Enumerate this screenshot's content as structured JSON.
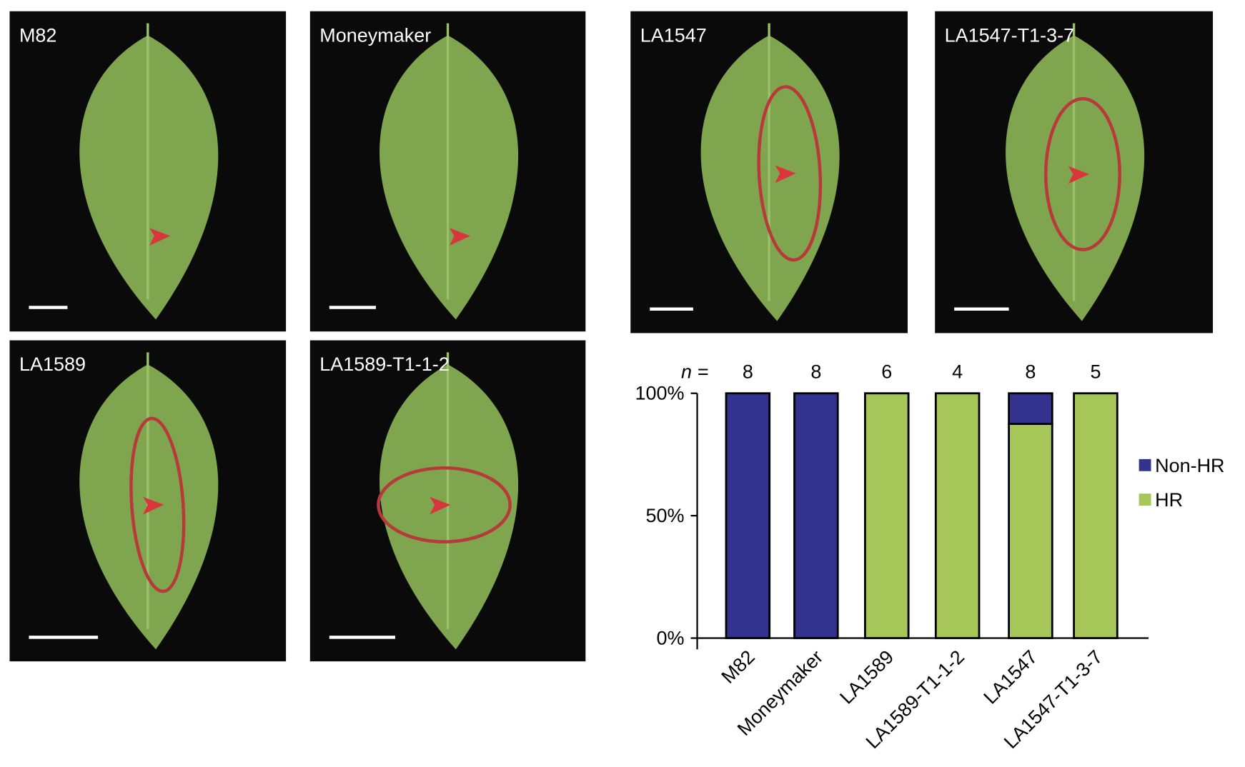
{
  "panels": [
    {
      "label": "M82"
    },
    {
      "label": "Moneymaker"
    },
    {
      "label": "LA1547"
    },
    {
      "label": "LA1547-T1-3-7"
    },
    {
      "label": "LA1589"
    },
    {
      "label": "LA1589-T1-1-2"
    }
  ],
  "chart_data": {
    "type": "stacked-bar",
    "categories": [
      "M82",
      "Moneymaker",
      "LA1589",
      "LA1589-T1-1-2",
      "LA1547",
      "LA1547-T1-3-7"
    ],
    "n_label": "n =",
    "n_values": [
      8,
      8,
      6,
      4,
      8,
      5
    ],
    "series": [
      {
        "name": "HR",
        "color": "#a6c65a",
        "values": [
          0,
          0,
          100,
          100,
          87.5,
          100
        ]
      },
      {
        "name": "Non-HR",
        "color": "#33338f",
        "values": [
          100,
          100,
          0,
          0,
          12.5,
          0
        ]
      }
    ],
    "ylim": [
      0,
      100
    ],
    "yticks": [
      {
        "value": 0,
        "label": "0%"
      },
      {
        "value": 50,
        "label": "50%"
      },
      {
        "value": 100,
        "label": "100%"
      }
    ],
    "legend": "right"
  }
}
